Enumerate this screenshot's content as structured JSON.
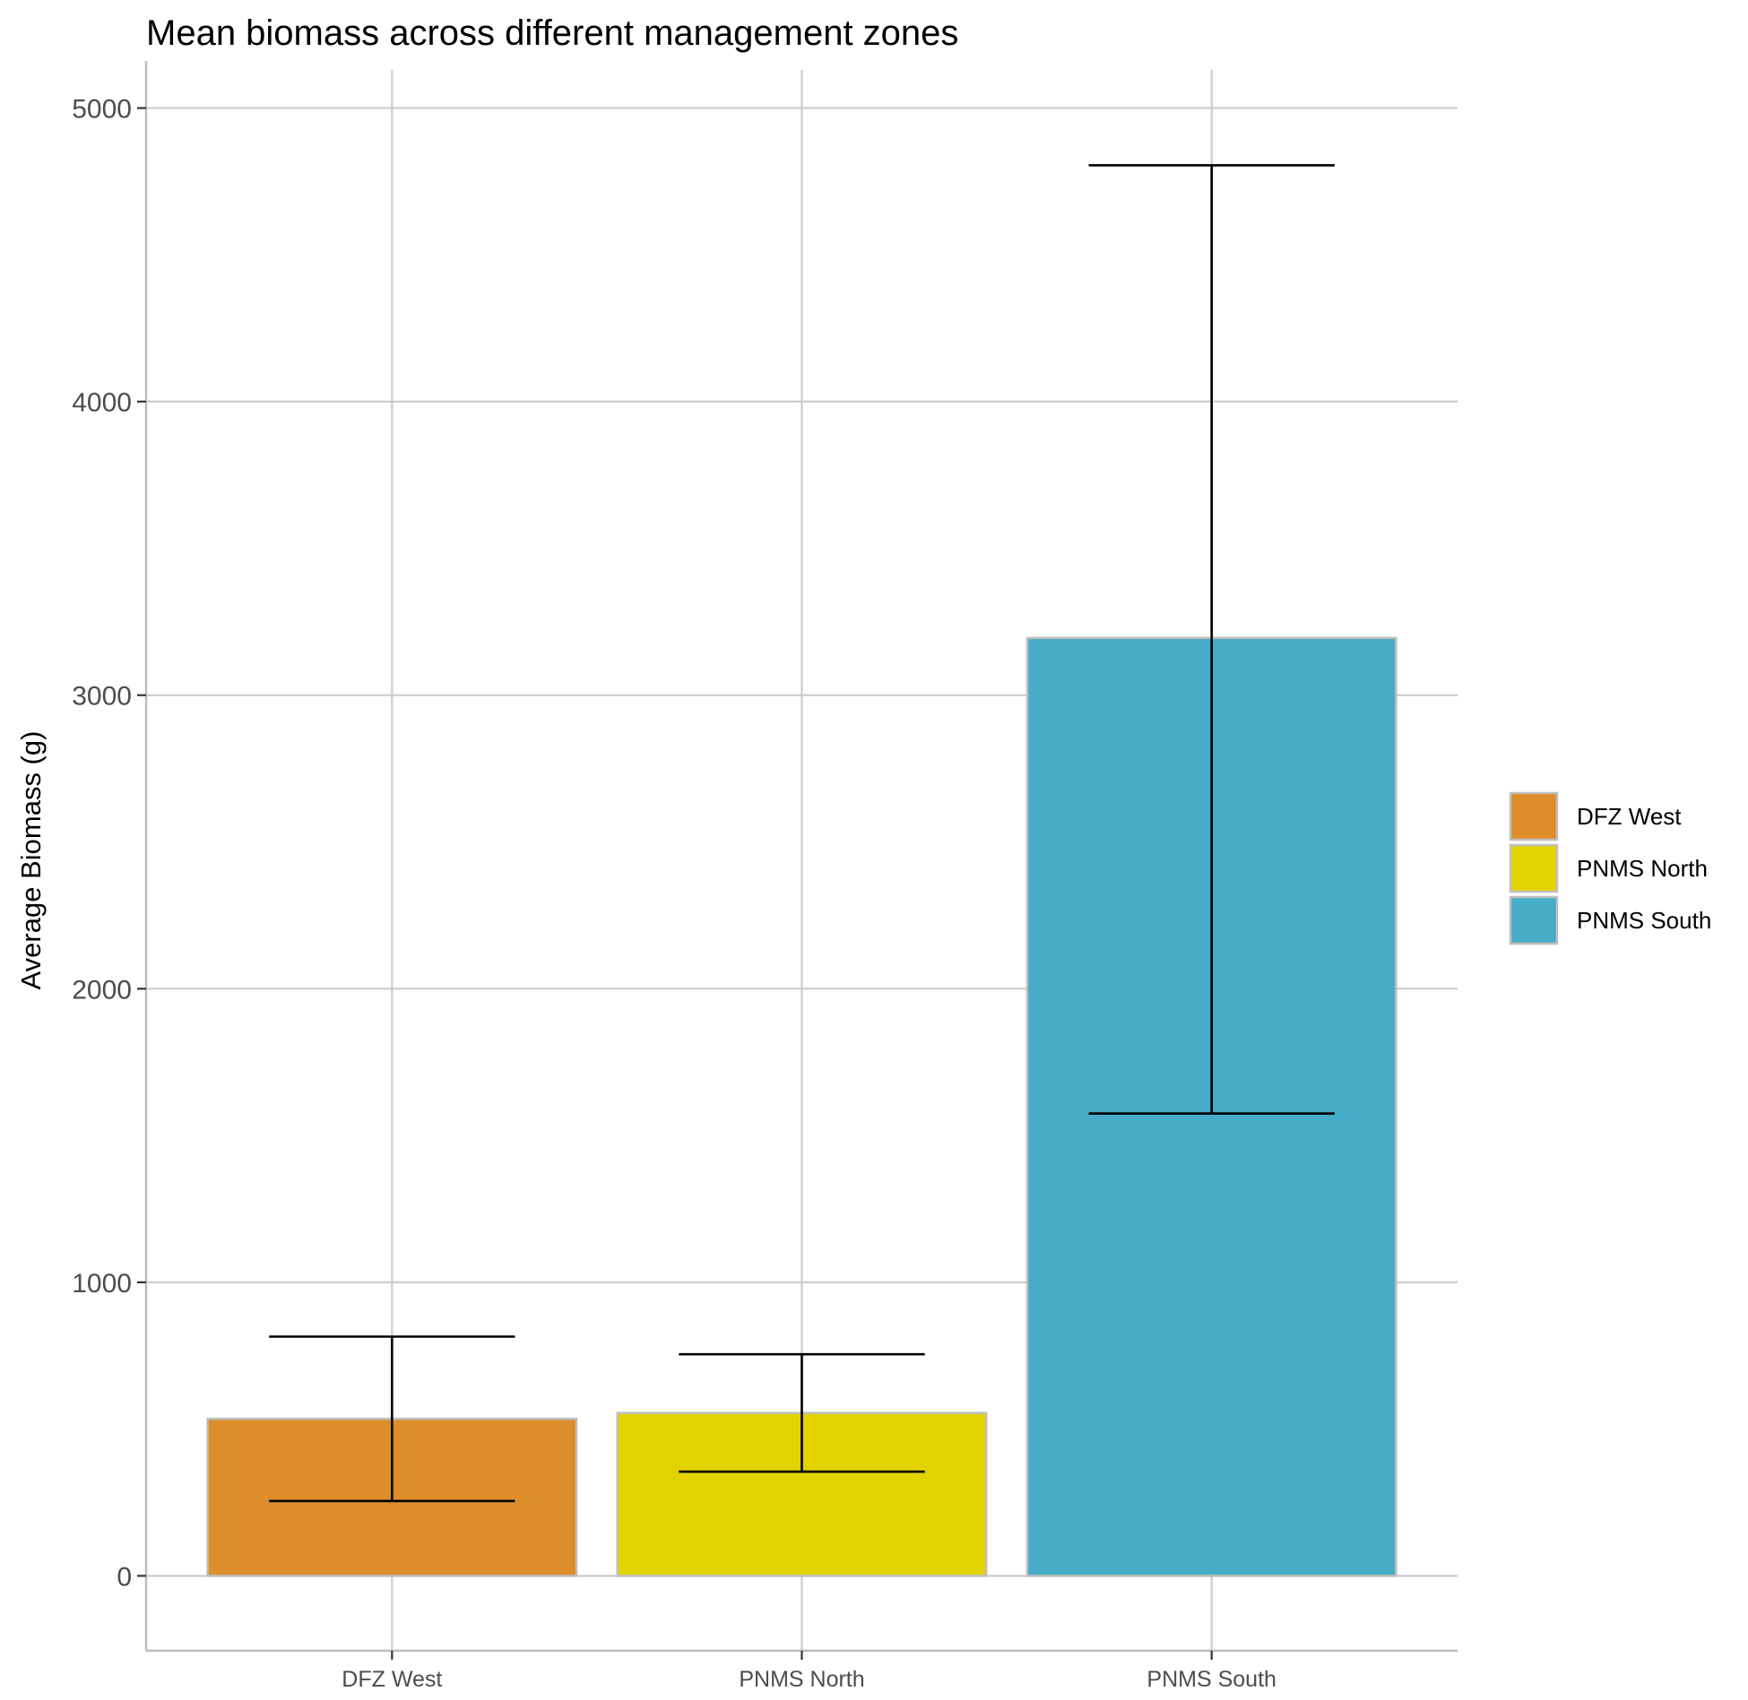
{
  "chart_data": {
    "type": "bar",
    "title": "Mean biomass across different management zones",
    "xlabel": "",
    "ylabel": "Average Biomass (g)",
    "categories": [
      "DFZ West",
      "PNMS North",
      "PNMS South"
    ],
    "values": [
      535,
      555,
      3195
    ],
    "error_low": [
      255,
      355,
      1575
    ],
    "error_high": [
      815,
      755,
      4805
    ],
    "colors": [
      "#DD8D29",
      "#E2D200",
      "#46ACC8"
    ],
    "bar_outline": "#bfbfbf",
    "ylim": [
      -255,
      5130
    ],
    "yticks": [
      0,
      1000,
      2000,
      3000,
      4000,
      5000
    ],
    "grid": true,
    "legend": {
      "position": "right",
      "entries": [
        "DFZ West",
        "PNMS North",
        "PNMS South"
      ]
    }
  }
}
